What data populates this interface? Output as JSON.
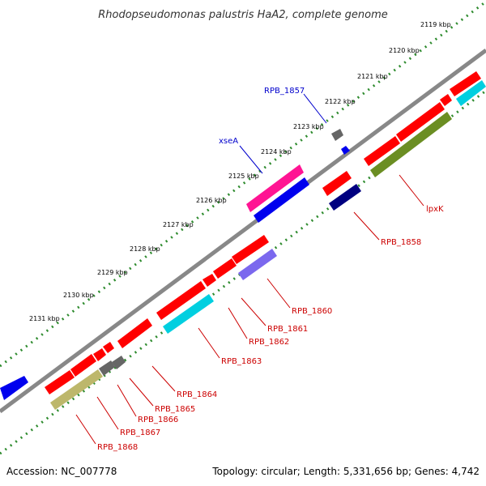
{
  "title": "Rhodopseudomonas palustris HaA2, complete genome",
  "footer": {
    "accession": "Accession: NC_007778",
    "summary": "Topology: circular; Length: 5,331,656 bp; Genes: 4,742"
  },
  "colors": {
    "backbone": "#888888",
    "tick_dot": "#2e8b2e",
    "red_gene": "#ff0000",
    "blue_gene": "#0000ee",
    "pink_gene": "#ff1493",
    "navy_gene": "#000080",
    "gray_gene": "#666666",
    "cyan_gene": "#00cfe0",
    "olive_gene": "#6b8e23",
    "khaki_gene": "#bdb76b",
    "purple_gene": "#7b68ee",
    "red_label": "#cc0000",
    "blue_label": "#0000cc"
  },
  "ticks": [
    {
      "label": "2119 kbp"
    },
    {
      "label": "2120 kbp"
    },
    {
      "label": "2121 kbp"
    },
    {
      "label": "2122 kbp"
    },
    {
      "label": "2123 kbp"
    },
    {
      "label": "2124 kbp"
    },
    {
      "label": "2125 kbp"
    },
    {
      "label": "2126 kbp"
    },
    {
      "label": "2127 kbp"
    },
    {
      "label": "2128 kbp"
    },
    {
      "label": "2129 kbp"
    },
    {
      "label": "2130 kbp"
    },
    {
      "label": "2131 kbp"
    }
  ],
  "gene_labels": [
    {
      "text": "RPB_1857",
      "color": "blue"
    },
    {
      "text": "xseA",
      "color": "blue"
    },
    {
      "text": "lpxK",
      "color": "red"
    },
    {
      "text": "RPB_1858",
      "color": "red"
    },
    {
      "text": "RPB_1860",
      "color": "red"
    },
    {
      "text": "RPB_1861",
      "color": "red"
    },
    {
      "text": "RPB_1862",
      "color": "red"
    },
    {
      "text": "RPB_1863",
      "color": "red"
    },
    {
      "text": "RPB_1864",
      "color": "red"
    },
    {
      "text": "RPB_1865",
      "color": "red"
    },
    {
      "text": "RPB_1866",
      "color": "red"
    },
    {
      "text": "RPB_1867",
      "color": "red"
    },
    {
      "text": "RPB_1868",
      "color": "red"
    }
  ]
}
